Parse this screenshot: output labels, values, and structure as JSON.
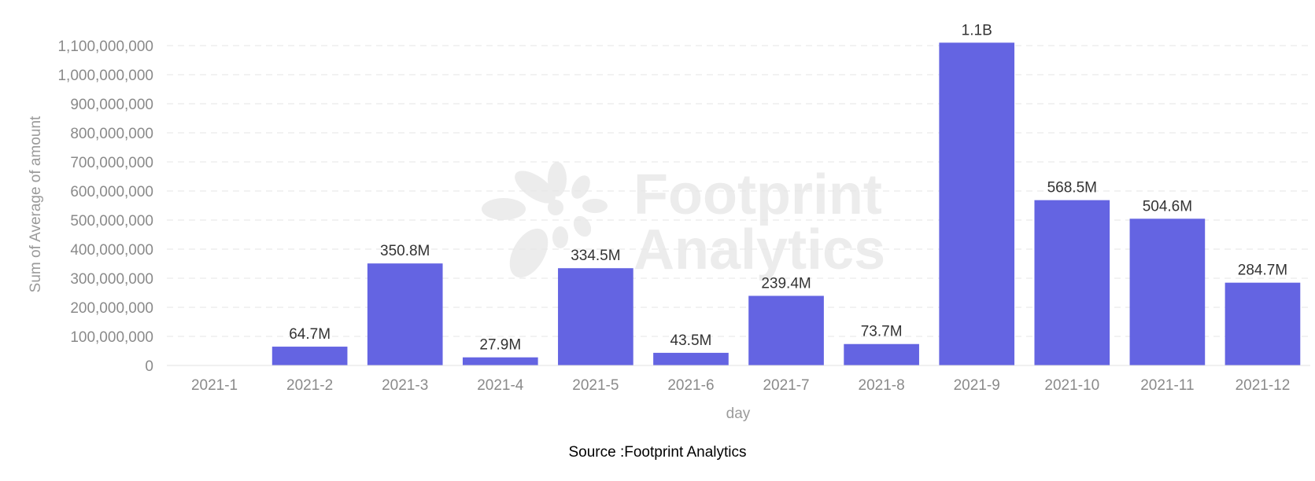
{
  "chart_data": {
    "type": "bar",
    "categories": [
      "2021-1",
      "2021-2",
      "2021-3",
      "2021-4",
      "2021-5",
      "2021-6",
      "2021-7",
      "2021-8",
      "2021-9",
      "2021-10",
      "2021-11",
      "2021-12"
    ],
    "values": [
      0,
      64700000,
      350800000,
      27900000,
      334500000,
      43500000,
      239400000,
      73700000,
      1110000000,
      568500000,
      504600000,
      284700000
    ],
    "data_labels": [
      "",
      "64.7M",
      "350.8M",
      "27.9M",
      "334.5M",
      "43.5M",
      "239.4M",
      "73.7M",
      "1.1B",
      "568.5M",
      "504.6M",
      "284.7M"
    ],
    "y_ticks": [
      0,
      100000000,
      200000000,
      300000000,
      400000000,
      500000000,
      600000000,
      700000000,
      800000000,
      900000000,
      1000000000,
      1100000000
    ],
    "y_tick_labels": [
      "0",
      "100,000,000",
      "200,000,000",
      "300,000,000",
      "400,000,000",
      "500,000,000",
      "600,000,000",
      "700,000,000",
      "800,000,000",
      "900,000,000",
      "1,000,000,000",
      "1,100,000,000"
    ],
    "ylim": [
      0,
      1100000000
    ],
    "xlabel": "day",
    "ylabel": "Sum of Average of amount",
    "grid": "horizontal dashed",
    "bar_color": "#6464e2"
  },
  "watermark": {
    "line1": "Footprint",
    "line2": "Analytics"
  },
  "source": "Source :Footprint Analytics"
}
